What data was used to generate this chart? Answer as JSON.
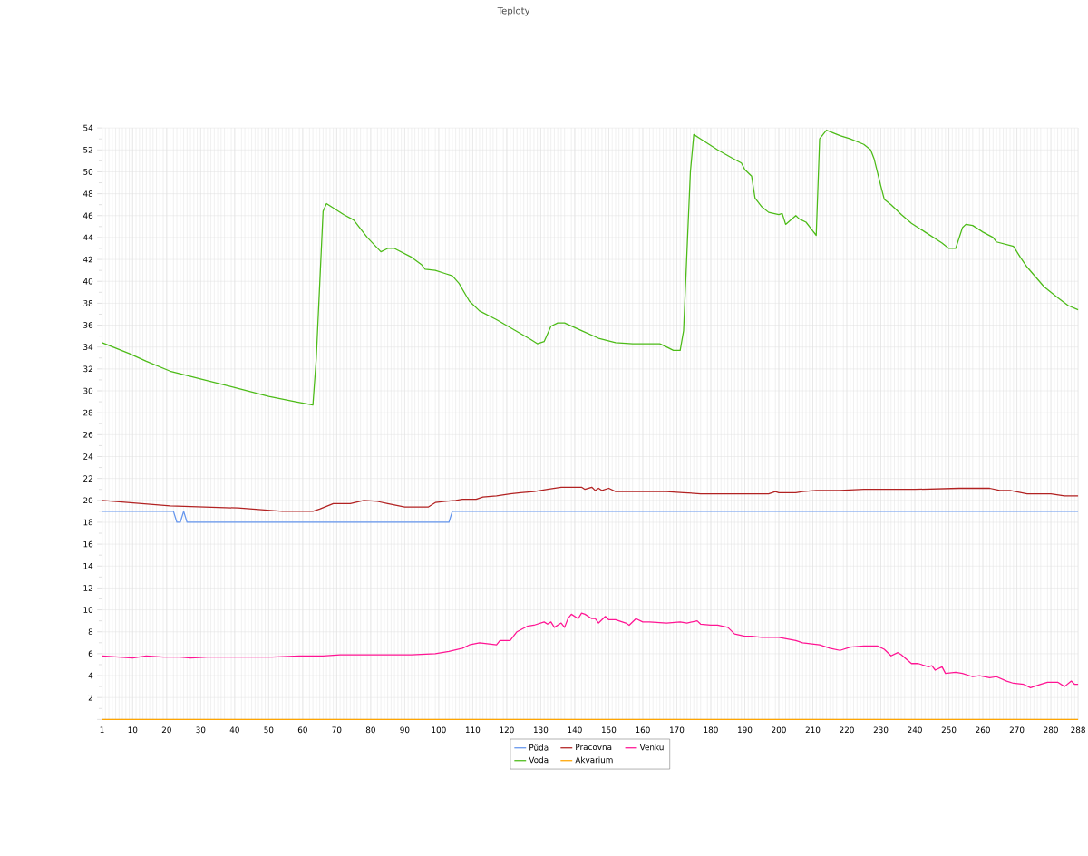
{
  "chart_data": {
    "type": "line",
    "title": "Teploty",
    "xlim": [
      1,
      288
    ],
    "xticks": [
      1,
      10,
      20,
      30,
      40,
      50,
      60,
      70,
      80,
      90,
      100,
      110,
      120,
      130,
      140,
      150,
      160,
      170,
      180,
      190,
      200,
      210,
      220,
      230,
      240,
      250,
      260,
      270,
      280,
      288
    ],
    "ylim": [
      0,
      54
    ],
    "yticks": [
      {
        "value": 0,
        "label": null
      },
      2,
      4,
      6,
      8,
      10,
      12,
      14,
      16,
      18,
      20,
      22,
      24,
      26,
      28,
      30,
      32,
      34,
      36,
      38,
      40,
      42,
      44,
      46,
      48,
      50,
      52,
      54
    ],
    "grid": true,
    "legend": "bottom",
    "marker": "none",
    "line_style": "solid",
    "series": [
      {
        "name": "Půda",
        "color": "#6495ed",
        "x": [
          1,
          22,
          23,
          24,
          25,
          26,
          103,
          104,
          288
        ],
        "values": [
          19,
          19,
          18,
          18,
          19,
          18,
          18,
          19,
          19
        ]
      },
      {
        "name": "Pracovna",
        "color": "#b22222",
        "x": [
          1,
          21,
          41,
          54,
          63,
          65,
          69,
          74,
          78,
          82,
          85,
          90,
          97,
          99,
          102,
          105,
          107,
          111,
          113,
          117,
          121,
          124,
          128,
          132,
          136,
          142,
          143,
          145,
          146,
          147,
          148,
          150,
          152,
          157,
          167,
          172,
          177,
          182,
          197,
          199,
          200,
          205,
          207,
          211,
          218,
          225,
          233,
          240,
          253,
          262,
          265,
          268,
          273,
          280,
          284,
          288
        ],
        "values": [
          20.0,
          19.5,
          19.3,
          19.0,
          19.0,
          19.2,
          19.7,
          19.7,
          20.0,
          19.9,
          19.7,
          19.4,
          19.4,
          19.8,
          19.9,
          20.0,
          20.1,
          20.1,
          20.3,
          20.4,
          20.6,
          20.7,
          20.8,
          21.0,
          21.2,
          21.2,
          21.0,
          21.2,
          20.9,
          21.1,
          20.9,
          21.1,
          20.8,
          20.8,
          20.8,
          20.7,
          20.6,
          20.6,
          20.6,
          20.8,
          20.7,
          20.7,
          20.8,
          20.9,
          20.9,
          21.0,
          21.0,
          21.0,
          21.1,
          21.1,
          20.9,
          20.9,
          20.6,
          20.6,
          20.4,
          20.4
        ]
      },
      {
        "name": "Venku",
        "color": "#ff1493",
        "x": [
          1,
          6,
          10,
          14,
          19,
          24,
          27,
          32,
          41,
          51,
          59,
          66,
          71,
          82,
          92,
          99,
          103,
          107,
          109,
          112,
          117,
          118,
          121,
          123,
          126,
          128,
          131,
          132,
          133,
          134,
          136,
          137,
          138,
          139,
          141,
          142,
          143,
          145,
          146,
          147,
          149,
          150,
          152,
          155,
          156,
          158,
          160,
          162,
          167,
          171,
          173,
          176,
          177,
          180,
          182,
          185,
          187,
          190,
          192,
          195,
          200,
          205,
          207,
          212,
          215,
          218,
          221,
          225,
          229,
          231,
          233,
          235,
          236,
          239,
          241,
          244,
          245,
          246,
          248,
          249,
          252,
          254,
          257,
          259,
          262,
          264,
          267,
          269,
          272,
          274,
          277,
          279,
          282,
          284,
          286,
          287,
          288
        ],
        "values": [
          5.8,
          5.7,
          5.6,
          5.8,
          5.7,
          5.7,
          5.6,
          5.7,
          5.7,
          5.7,
          5.8,
          5.8,
          5.9,
          5.9,
          5.9,
          6.0,
          6.2,
          6.5,
          6.8,
          7.0,
          6.8,
          7.2,
          7.2,
          8.0,
          8.5,
          8.6,
          8.9,
          8.7,
          8.9,
          8.4,
          8.8,
          8.4,
          9.2,
          9.6,
          9.2,
          9.7,
          9.6,
          9.2,
          9.2,
          8.8,
          9.4,
          9.1,
          9.1,
          8.8,
          8.6,
          9.2,
          8.9,
          8.9,
          8.8,
          8.9,
          8.8,
          9.0,
          8.7,
          8.6,
          8.6,
          8.4,
          7.8,
          7.6,
          7.6,
          7.5,
          7.5,
          7.2,
          7.0,
          6.8,
          6.5,
          6.3,
          6.6,
          6.7,
          6.7,
          6.4,
          5.8,
          6.1,
          5.9,
          5.1,
          5.1,
          4.8,
          4.9,
          4.5,
          4.8,
          4.2,
          4.3,
          4.2,
          3.9,
          4.0,
          3.8,
          3.9,
          3.5,
          3.3,
          3.2,
          2.9,
          3.2,
          3.4,
          3.4,
          3.0,
          3.5,
          3.2,
          3.2
        ]
      },
      {
        "name": "Voda",
        "color": "#4cbb17",
        "x": [
          1,
          9,
          14,
          21,
          31,
          40,
          50,
          58,
          63,
          64,
          66,
          67,
          72,
          75,
          79,
          83,
          85,
          87,
          92,
          95,
          96,
          99,
          102,
          104,
          106,
          109,
          112,
          117,
          122,
          127,
          129,
          131,
          133,
          135,
          137,
          142,
          147,
          152,
          157,
          165,
          167,
          169,
          171,
          172,
          174,
          175,
          177,
          182,
          186,
          189,
          190,
          192,
          193,
          195,
          197,
          200,
          201,
          202,
          205,
          206,
          208,
          211,
          212,
          214,
          218,
          221,
          225,
          227,
          228,
          230,
          231,
          233,
          236,
          239,
          243,
          248,
          250,
          252,
          254,
          255,
          257,
          260,
          263,
          264,
          269,
          271,
          273,
          278,
          282,
          285,
          288
        ],
        "values": [
          34.4,
          33.4,
          32.7,
          31.8,
          31.0,
          30.3,
          29.5,
          29.0,
          28.7,
          33.0,
          46.4,
          47.1,
          46.1,
          45.6,
          44.0,
          42.7,
          43.0,
          43.0,
          42.2,
          41.5,
          41.1,
          41.0,
          40.7,
          40.5,
          39.8,
          38.2,
          37.3,
          36.5,
          35.6,
          34.7,
          34.3,
          34.5,
          35.9,
          36.2,
          36.2,
          35.5,
          34.8,
          34.4,
          34.3,
          34.3,
          34.0,
          33.7,
          33.7,
          35.5,
          50.0,
          53.4,
          53.0,
          52.0,
          51.3,
          50.8,
          50.2,
          49.6,
          47.6,
          46.8,
          46.3,
          46.1,
          46.2,
          45.2,
          46.0,
          45.7,
          45.4,
          44.2,
          53.0,
          53.8,
          53.3,
          53.0,
          52.5,
          52.0,
          51.2,
          48.7,
          47.5,
          47.0,
          46.1,
          45.3,
          44.5,
          43.5,
          43.0,
          43.0,
          44.9,
          45.2,
          45.1,
          44.5,
          44.0,
          43.6,
          43.2,
          42.2,
          41.3,
          39.5,
          38.5,
          37.8,
          37.4
        ]
      },
      {
        "name": "Akvarium",
        "color": "#ffa500",
        "x": [
          1,
          288
        ],
        "values": [
          0,
          0
        ]
      }
    ]
  }
}
